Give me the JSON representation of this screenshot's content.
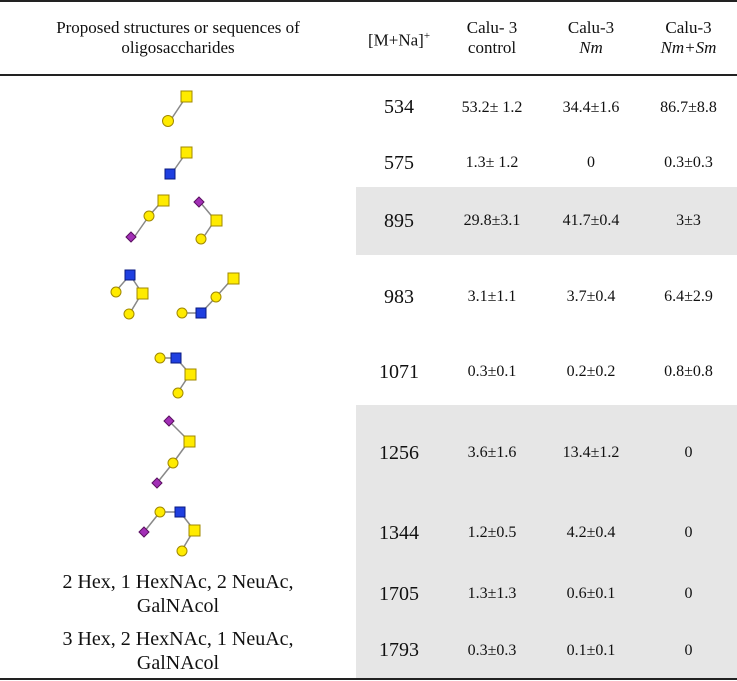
{
  "headers": {
    "structure": "Proposed structures or sequences of oligosaccharides",
    "mass_base": "[M+Na]",
    "mass_sup": "+",
    "control_line1": "Calu- 3",
    "control_line2": "control",
    "nm_line1": "Calu-3",
    "nm_line2": "Nm",
    "nmsm_line1": "Calu-3",
    "nmsm_line2": "Nm+Sm"
  },
  "rows": [
    {
      "mass": "534",
      "control": "53.2± 1.2",
      "nm": "34.4±1.6",
      "nmsm": "86.7±8.8",
      "shaded": false
    },
    {
      "mass": "575",
      "control": "1.3± 1.2",
      "nm": "0",
      "nmsm": "0.3±0.3",
      "shaded": false
    },
    {
      "mass": "895",
      "control": "29.8±3.1",
      "nm": "41.7±0.4",
      "nmsm": "3±3",
      "shaded": true
    },
    {
      "mass": "983",
      "control": "3.1±1.1",
      "nm": "3.7±0.4",
      "nmsm": "6.4±2.9",
      "shaded": false
    },
    {
      "mass": "1071",
      "control": "0.3±0.1",
      "nm": "0.2±0.2",
      "nmsm": "0.8±0.8",
      "shaded": false
    },
    {
      "mass": "1256",
      "control": "3.6±1.6",
      "nm": "13.4±1.2",
      "nmsm": "0",
      "shaded": true
    },
    {
      "mass": "1344",
      "control": "1.2±0.5",
      "nm": "4.2±0.4",
      "nmsm": "0",
      "shaded": true
    },
    {
      "mass": "1705",
      "control": "1.3±1.3",
      "nm": "0.6±0.1",
      "nmsm": "0",
      "shaded": true,
      "structure_text": "2 Hex, 1 HexNAc, 2 NeuAc, GalNAcol"
    },
    {
      "mass": "1793",
      "control": "0.3±0.3",
      "nm": "0.1±0.1",
      "nmsm": "0",
      "shaded": true,
      "structure_text": "3 Hex, 2 HexNAc, 1 NeuAc, GalNAcol"
    }
  ],
  "glycan_colors": {
    "galactose": "#ffeb00",
    "glcnac": "#1f3fe0",
    "neuac": "#a22fb6"
  },
  "glycan_icons": [
    "yellow-circle",
    "yellow-square",
    "blue-square",
    "purple-diamond"
  ]
}
